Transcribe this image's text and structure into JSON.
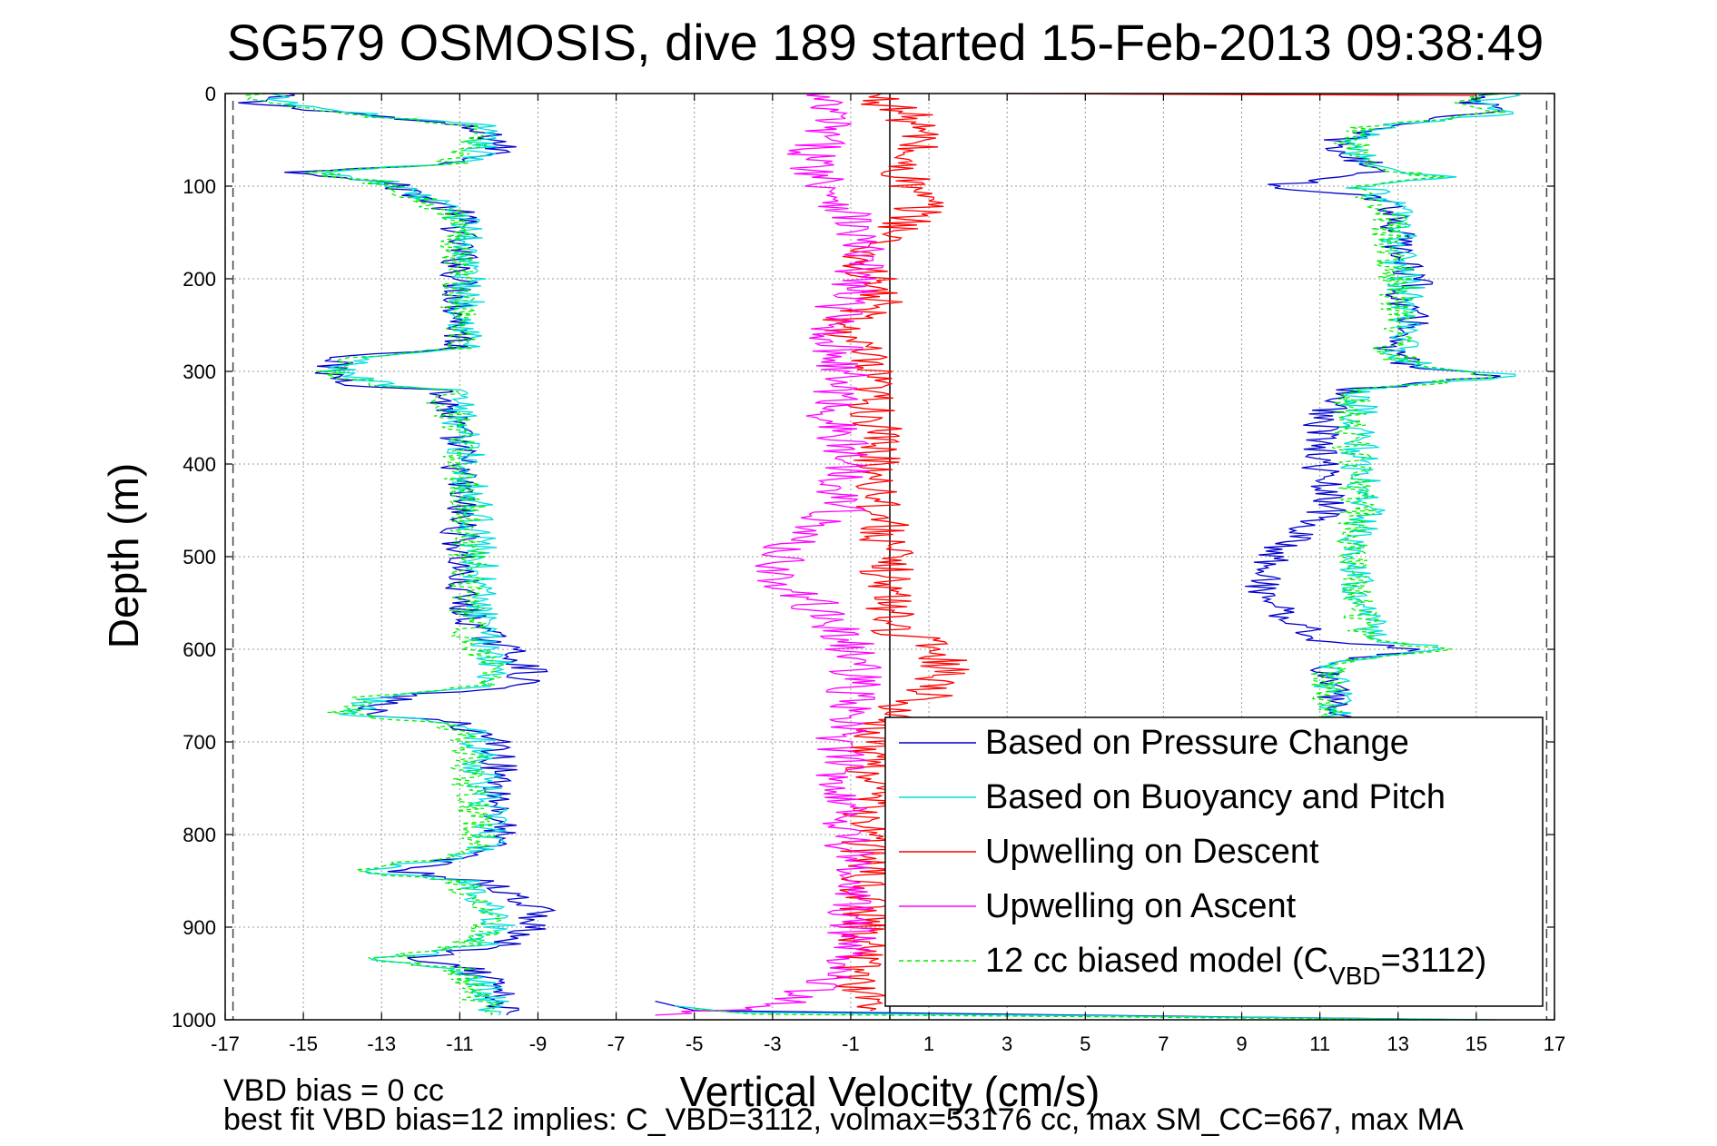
{
  "chart_data": {
    "type": "line",
    "title": "SG579 OSMOSIS, dive 189 started 15-Feb-2013 09:38:49",
    "xlabel": "Vertical Velocity (cm/s)",
    "ylabel": "Depth (m)",
    "xlim": [
      -17,
      17
    ],
    "ylim": [
      0,
      1000
    ],
    "y_reversed": true,
    "grid": true,
    "legend_position": "bottom-right",
    "x_ticks": [
      "-17",
      "-15",
      "-13",
      "-11",
      "-9",
      "-7",
      "-5",
      "-3",
      "-1",
      "1",
      "3",
      "5",
      "7",
      "9",
      "11",
      "13",
      "15",
      "17"
    ],
    "y_ticks": [
      "0",
      "100",
      "200",
      "300",
      "400",
      "500",
      "600",
      "700",
      "800",
      "900",
      "1000"
    ],
    "reference_lines": {
      "dashed_x": [
        -16.8,
        16.8
      ],
      "solid_x": [
        0
      ]
    },
    "series": [
      {
        "name": "Based on Pressure Change",
        "color": "#0000cc",
        "style": "solid",
        "segments": [
          {
            "depth": [
              0,
              10,
              20,
              35,
              50,
              65,
              75,
              85,
              95,
              110,
              130,
              150,
              175,
              200,
              225,
              250,
              275,
              285,
              300,
              315,
              320,
              350,
              400,
              450,
              500,
              550,
              580,
              600,
              620,
              640,
              650,
              670,
              680,
              700,
              750,
              800,
              820,
              840,
              850,
              880,
              900,
              920,
              935,
              945,
              960,
              980,
              995
            ],
            "x": [
              -15.5,
              -16.5,
              -14,
              -11,
              -10,
              -10,
              -11,
              -15,
              -13,
              -12,
              -11,
              -11,
              -11,
              -11,
              -11,
              -11,
              -11,
              -14,
              -14.5,
              -13.5,
              -11.5,
              -11.2,
              -11,
              -11,
              -11,
              -11,
              -10.5,
              -9.8,
              -9.2,
              -9.5,
              -12.5,
              -13.5,
              -11,
              -10,
              -10,
              -10,
              -10.5,
              -12.5,
              -10.5,
              -9,
              -9.2,
              -10,
              -12.5,
              -10.8,
              -10.2,
              -10,
              -9.8
            ]
          },
          {
            "depth": [
              0,
              10,
              20,
              35,
              50,
              65,
              80,
              90,
              100,
              110,
              130,
              150,
              175,
              200,
              225,
              250,
              275,
              295,
              305,
              320,
              350,
              400,
              450,
              490,
              530,
              560,
              590,
              600,
              615,
              640,
              665,
              690
            ],
            "x": [
              15.5,
              15,
              15.5,
              12.5,
              11.5,
              11.5,
              12.5,
              12,
              9.5,
              12.5,
              13,
              13,
              13,
              13.5,
              13,
              13.5,
              12.5,
              13.5,
              15.5,
              11.8,
              11,
              11,
              11.2,
              10,
              9.5,
              10,
              11,
              13.5,
              11.2,
              11.2,
              11.5,
              11.5
            ]
          },
          {
            "depth": [
              980,
              990,
              995,
              1000
            ],
            "x": [
              -6,
              -5,
              5,
              15
            ]
          }
        ]
      },
      {
        "name": "Based on Buoyancy and Pitch",
        "color": "#00dddd",
        "style": "solid",
        "segments": [
          {
            "depth": [
              0,
              10,
              20,
              35,
              50,
              65,
              75,
              85,
              95,
              110,
              130,
              150,
              175,
              200,
              225,
              250,
              275,
              285,
              300,
              315,
              320,
              350,
              400,
              450,
              500,
              550,
              580,
              600,
              620,
              640,
              650,
              670,
              680,
              700,
              750,
              800,
              820,
              840,
              850,
              880,
              900,
              920,
              935,
              945,
              960,
              980,
              995
            ],
            "x": [
              -16,
              -15.5,
              -14,
              -10.5,
              -10.5,
              -10.5,
              -11,
              -14.5,
              -13,
              -12,
              -11,
              -10.8,
              -10.8,
              -10.8,
              -10.8,
              -10.8,
              -10.8,
              -13.5,
              -14.2,
              -13,
              -11.2,
              -11,
              -10.8,
              -10.6,
              -10.5,
              -10.5,
              -10.5,
              -10.2,
              -10,
              -10.2,
              -13,
              -13.8,
              -11,
              -10.5,
              -10.4,
              -10.2,
              -10.5,
              -13.5,
              -10.8,
              -10.2,
              -10,
              -10.5,
              -13,
              -10.8,
              -10.5,
              -10.2,
              -10
            ]
          },
          {
            "depth": [
              0,
              10,
              20,
              35,
              50,
              65,
              80,
              90,
              100,
              110,
              130,
              150,
              175,
              200,
              225,
              250,
              275,
              295,
              305,
              320,
              350,
              400,
              450,
              490,
              530,
              560,
              590,
              600,
              615,
              640,
              665,
              690
            ],
            "x": [
              15.8,
              15,
              16,
              12.5,
              12,
              12,
              12.5,
              14,
              12,
              12.5,
              13,
              13,
              13,
              13.2,
              13.2,
              13.2,
              13,
              13.5,
              16,
              12,
              12,
              12,
              12.2,
              12,
              12,
              12.2,
              12.5,
              14.2,
              11.3,
              11.3,
              11.5,
              11.5
            ]
          },
          {
            "depth": [
              985,
              992,
              996,
              1000
            ],
            "x": [
              -5.5,
              -4,
              6,
              15.5
            ]
          }
        ]
      },
      {
        "name": "Upwelling on Descent",
        "color": "#ff0000",
        "style": "solid",
        "segments": [
          {
            "depth": [
              0,
              25,
              50,
              75,
              100,
              120,
              140,
              160,
              180,
              200,
              225,
              250,
              275,
              300,
              325,
              350,
              400,
              450,
              500,
              550,
              580,
              600,
              620,
              640,
              650,
              660,
              670,
              700,
              750,
              800,
              850,
              900,
              950,
              990
            ],
            "x": [
              -0.5,
              0.5,
              0.8,
              0.2,
              0.5,
              0.8,
              0.5,
              -0.3,
              -0.8,
              -0.5,
              -0.3,
              -1.3,
              -0.8,
              -0.6,
              -0.5,
              -0.4,
              -0.3,
              -0.2,
              -0.1,
              0,
              0.2,
              1.2,
              1.5,
              1.2,
              1,
              0.5,
              0,
              -0.4,
              -0.5,
              -0.6,
              -0.6,
              -0.6,
              -0.8,
              -0.5
            ]
          },
          {
            "depth": [
              0,
              1,
              2
            ],
            "x": [
              3,
              8,
              15
            ]
          }
        ]
      },
      {
        "name": "Upwelling on Ascent",
        "color": "#ff00ff",
        "style": "solid",
        "segments": [
          {
            "depth": [
              0,
              25,
              50,
              75,
              100,
              130,
              160,
              200,
              250,
              300,
              350,
              400,
              450,
              480,
              510,
              530,
              550,
              570,
              600,
              620,
              650,
              700,
              750,
              800,
              850,
              900,
              950,
              985,
              995
            ],
            "x": [
              -2,
              -1.5,
              -1.8,
              -2,
              -1.5,
              -1,
              -0.8,
              -0.8,
              -1.5,
              -1.2,
              -1.5,
              -1,
              -1.3,
              -2.5,
              -2.8,
              -3,
              -2,
              -1.5,
              -1,
              -0.8,
              -1,
              -1.3,
              -1.2,
              -1,
              -1,
              -1,
              -1,
              -3,
              -6
            ]
          }
        ]
      },
      {
        "name": "12 cc biased model (C",
        "subscript": "VBD",
        "name_suffix": "=3112)",
        "color": "#00ee00",
        "style": "dashed",
        "segments": [
          {
            "depth": [
              0,
              10,
              20,
              35,
              50,
              65,
              75,
              85,
              95,
              110,
              130,
              150,
              175,
              200,
              225,
              250,
              275,
              285,
              300,
              315,
              320,
              350,
              400,
              450,
              500,
              550,
              580,
              600,
              620,
              640,
              650,
              670,
              680,
              700,
              750,
              800,
              820,
              840,
              850,
              880,
              900,
              920,
              935,
              945,
              960,
              980,
              995
            ],
            "x": [
              -16.2,
              -15.8,
              -14.2,
              -10.8,
              -10.8,
              -10.8,
              -11.2,
              -14.8,
              -13.2,
              -12.2,
              -11.2,
              -11,
              -11,
              -11,
              -11,
              -11,
              -11,
              -13.8,
              -14.5,
              -13.2,
              -11.5,
              -11.2,
              -11,
              -10.8,
              -10.8,
              -10.8,
              -10.8,
              -10.5,
              -10.3,
              -10.5,
              -13.2,
              -14,
              -11.2,
              -10.8,
              -10.7,
              -10.5,
              -10.8,
              -13.8,
              -11,
              -10.5,
              -10.3,
              -10.8,
              -13.2,
              -11,
              -10.8,
              -10.5,
              -10.2
            ]
          },
          {
            "depth": [
              0,
              10,
              20,
              35,
              50,
              65,
              80,
              90,
              100,
              110,
              130,
              150,
              175,
              200,
              225,
              250,
              275,
              295,
              305,
              320,
              350,
              400,
              450,
              490,
              530,
              560,
              590,
              600,
              615,
              640,
              665,
              690
            ],
            "x": [
              15.5,
              14.8,
              15.8,
              12.3,
              11.8,
              11.8,
              12.3,
              13.8,
              11.8,
              12.3,
              12.8,
              12.8,
              12.8,
              13,
              13,
              13,
              12.8,
              13.3,
              15.8,
              11.8,
              11.8,
              11.8,
              12,
              11.8,
              11.8,
              12,
              12.3,
              14,
              11.2,
              11.2,
              11.4,
              11.4
            ]
          },
          {
            "depth": [
              988,
              994,
              997,
              1000
            ],
            "x": [
              -5,
              -3.5,
              6,
              15
            ]
          }
        ]
      }
    ],
    "annotations": [
      "VBD bias = 0 cc",
      "best fit VBD bias=12 implies: C_VBD=3112, volmax=53176 cc, max SM_CC=667, max MA"
    ]
  }
}
